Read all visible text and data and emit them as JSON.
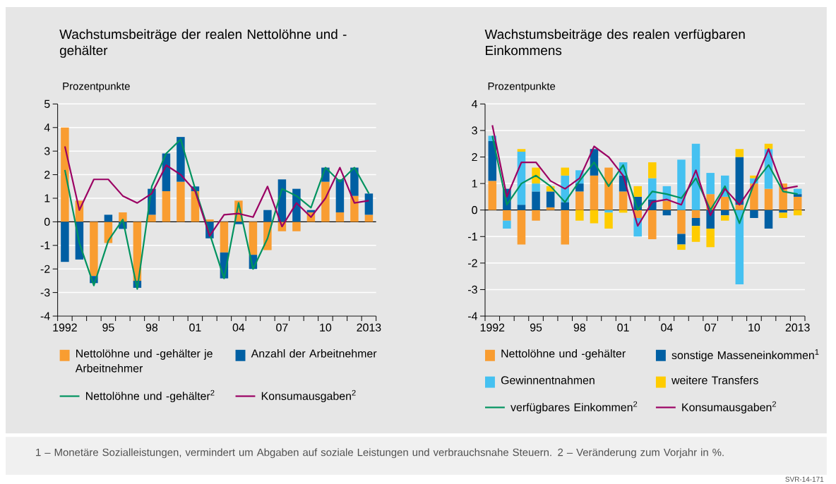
{
  "chart_data": [
    {
      "type": "bar",
      "title": "Wachstumsbeiträge der realen Nettolöhne und -gehälter",
      "ylabel": "Prozentpunkte",
      "categories": [
        "1992",
        null,
        null,
        "95",
        null,
        null,
        "98",
        null,
        null,
        "01",
        null,
        null,
        "04",
        null,
        null,
        "07",
        null,
        null,
        "10",
        null,
        null,
        "2013"
      ],
      "stacked": true,
      "ylim": [
        -4,
        5
      ],
      "yticks": [
        -4,
        -3,
        -2,
        -1,
        0,
        1,
        2,
        3,
        4,
        5
      ],
      "grid": "y",
      "legend": "bottom",
      "marker": "none",
      "series": [
        {
          "name": "Nettolöhne und -gehälter je Arbeitnehmer",
          "color": "#f99d31",
          "values": [
            4.0,
            0.9,
            -2.3,
            -0.9,
            0.4,
            -2.5,
            0.3,
            1.3,
            1.7,
            1.3,
            0.1,
            -1.3,
            0.9,
            -1.4,
            -1.2,
            -0.4,
            -0.4,
            0.4,
            1.7,
            0.4,
            1.1,
            0.3
          ]
        },
        {
          "name": "Anzahl der Arbeitnehmer",
          "color": "#005fa3",
          "values": [
            -1.7,
            -1.6,
            -0.3,
            0.3,
            -0.3,
            -0.3,
            1.1,
            1.6,
            1.9,
            0.2,
            -0.7,
            -1.1,
            -0.1,
            -0.6,
            0.5,
            1.8,
            1.4,
            0.1,
            0.6,
            1.4,
            1.2,
            0.9
          ]
        },
        {
          "name": "Nettolöhne und -gehälter$^{2}$",
          "type": "line",
          "color": "#00935f",
          "values": [
            2.2,
            -0.9,
            -2.7,
            -0.8,
            0.1,
            -2.85,
            1.5,
            2.9,
            3.5,
            1.4,
            -0.5,
            -2.4,
            0.8,
            -2.0,
            -0.7,
            1.4,
            1.1,
            0.6,
            2.3,
            1.7,
            2.3,
            1.2
          ]
        },
        {
          "name": "Konsumausgaben$^{2}$",
          "type": "line",
          "color": "#9b0063",
          "values": [
            3.2,
            0.5,
            1.8,
            1.8,
            1.1,
            0.8,
            1.2,
            2.4,
            2.0,
            1.3,
            -0.6,
            0.3,
            0.35,
            0.2,
            1.5,
            -0.2,
            0.8,
            0.2,
            1.0,
            2.3,
            0.8,
            0.9
          ]
        }
      ]
    },
    {
      "type": "bar",
      "title": "Wachstumsbeiträge des realen verfügbaren Einkommens",
      "ylabel": "Prozentpunkte",
      "categories": [
        "1992",
        null,
        null,
        "95",
        null,
        null,
        "98",
        null,
        null,
        "01",
        null,
        null,
        "04",
        null,
        null,
        "07",
        null,
        null,
        "10",
        null,
        null,
        "2013"
      ],
      "stacked": true,
      "ylim": [
        -4,
        4
      ],
      "yticks": [
        -4,
        -3,
        -2,
        -1,
        0,
        1,
        2,
        3,
        4
      ],
      "grid": "y",
      "legend": "bottom",
      "marker": "none",
      "series": [
        {
          "name": "Nettolöhne und -gehälter",
          "color": "#f99d31",
          "values": [
            1.1,
            -0.4,
            -1.3,
            -0.4,
            0.1,
            -1.3,
            0.7,
            1.3,
            1.6,
            0.7,
            -0.3,
            -1.1,
            0.35,
            -0.9,
            -0.3,
            0.6,
            0.5,
            0.2,
            1.0,
            0.8,
            1.0,
            0.5
          ]
        },
        {
          "name": "sonstige Masseneinkommen$^{1}$",
          "color": "#005fa3",
          "values": [
            1.5,
            0.8,
            0.2,
            0.7,
            0.6,
            0.3,
            0.3,
            1.0,
            0.0,
            0.6,
            0.5,
            0.4,
            -0.2,
            -0.4,
            -0.3,
            -0.7,
            -0.2,
            1.8,
            -0.3,
            -0.7,
            -0.1,
            0.1
          ]
        },
        {
          "name": "Gewinnentnahmen",
          "color": "#45c1f1",
          "values": [
            0.2,
            -0.3,
            2.0,
            0.3,
            0.0,
            1.0,
            0.5,
            0.0,
            -0.1,
            0.5,
            -0.7,
            0.8,
            0.55,
            1.9,
            2.5,
            0.8,
            0.8,
            -2.8,
            0.2,
            1.5,
            0.0,
            0.2
          ]
        },
        {
          "name": "weitere Transfers",
          "color": "#ffcc00",
          "values": [
            0.0,
            0.0,
            0.1,
            0.6,
            0.2,
            0.3,
            -0.4,
            -0.5,
            -0.6,
            -0.1,
            0.4,
            0.6,
            0.0,
            -0.2,
            -0.6,
            -0.7,
            -0.2,
            0.3,
            0.1,
            0.2,
            -0.2,
            -0.2
          ]
        },
        {
          "name": "verfügbares Einkommen$^{2}$",
          "type": "line",
          "color": "#00935f",
          "values": [
            2.8,
            0.2,
            1.0,
            1.3,
            0.9,
            0.3,
            1.1,
            1.8,
            0.9,
            1.7,
            0.0,
            0.7,
            0.6,
            0.45,
            1.2,
            0.0,
            0.9,
            -0.5,
            1.0,
            1.7,
            0.7,
            0.6
          ]
        },
        {
          "name": "Konsumausgaben$^{2}$",
          "type": "line",
          "color": "#9b0063",
          "values": [
            3.2,
            0.5,
            1.8,
            1.8,
            1.1,
            0.8,
            1.2,
            2.4,
            2.0,
            1.3,
            -0.6,
            0.3,
            0.4,
            0.2,
            1.5,
            -0.2,
            0.8,
            0.2,
            1.0,
            2.3,
            0.8,
            0.9
          ]
        }
      ],
      "annotations": [
        "1 – Monetäre Sozialleistungen, vermindert um Abgaben auf soziale Leistungen und verbrauchsnahe Steuern.  2 – Veränderung zum Vorjahr in %.",
        "SVR-14-171"
      ]
    }
  ]
}
